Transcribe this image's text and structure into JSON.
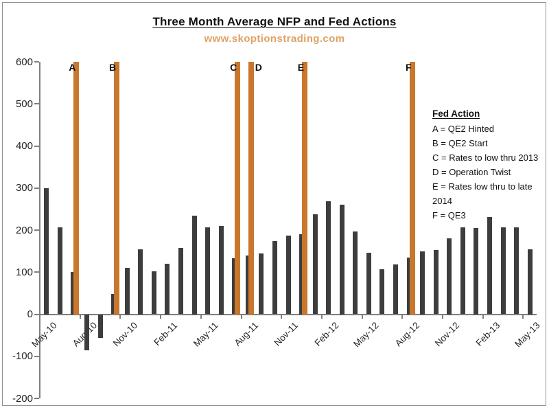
{
  "title": "Three Month Average NFP and Fed Actions",
  "subtitle": "www.skoptionstrading.com",
  "colors": {
    "bar": "#3d3d3d",
    "fed_line": "#c8772c",
    "subtitle_text": "#dfa263",
    "axis": "#7f7f7f",
    "text": "#262626"
  },
  "legend": {
    "title": "Fed Action"
  },
  "chart_data": {
    "type": "bar",
    "title": "Three Month Average NFP and Fed Actions",
    "subtitle": "www.skoptionstrading.com",
    "xlabel": "",
    "ylabel": "",
    "ylim": [
      -200,
      600
    ],
    "y_ticks": [
      600,
      500,
      400,
      300,
      200,
      100,
      0,
      -100,
      -200
    ],
    "grid": false,
    "categories": [
      "May-10",
      "Jun-10",
      "Jul-10",
      "Aug-10",
      "Sep-10",
      "Oct-10",
      "Nov-10",
      "Dec-10",
      "Jan-11",
      "Feb-11",
      "Mar-11",
      "Apr-11",
      "May-11",
      "Jun-11",
      "Jul-11",
      "Aug-11",
      "Sep-11",
      "Oct-11",
      "Nov-11",
      "Dec-11",
      "Jan-12",
      "Feb-12",
      "Mar-12",
      "Apr-12",
      "May-12",
      "Jun-12",
      "Jul-12",
      "Aug-12",
      "Sep-12",
      "Oct-12",
      "Nov-12",
      "Dec-12",
      "Jan-13",
      "Feb-13",
      "Mar-13",
      "Apr-13",
      "May-13"
    ],
    "values": [
      300,
      207,
      100,
      -85,
      -57,
      48,
      110,
      155,
      102,
      120,
      157,
      235,
      207,
      210,
      133,
      139,
      144,
      174,
      187,
      190,
      237,
      269,
      260,
      196,
      146,
      107,
      119,
      135,
      150,
      152,
      180,
      207,
      205,
      231,
      207,
      207,
      155
    ],
    "x_tick_labels": [
      "May-10",
      "Aug-10",
      "Nov-10",
      "Feb-11",
      "May-11",
      "Aug-11",
      "Nov-11",
      "Feb-12",
      "May-12",
      "Aug-12",
      "Nov-12",
      "Feb-13",
      "May-13"
    ],
    "fed_actions": [
      {
        "key": "A",
        "month": "Jul-10",
        "label": "QE2 Hinted",
        "label_side": "left"
      },
      {
        "key": "B",
        "month": "Oct-10",
        "label": "QE2 Start",
        "label_side": "left"
      },
      {
        "key": "C",
        "month": "Jul-11",
        "label": "Rates to low thru 2013",
        "label_side": "left"
      },
      {
        "key": "D",
        "month": "Aug-11",
        "label": "Operation Twist",
        "label_side": "right"
      },
      {
        "key": "E",
        "month": "Dec-11",
        "label": "Rates low thru to late 2014",
        "label_side": "left"
      },
      {
        "key": "F",
        "month": "Aug-12",
        "label": "QE3",
        "label_side": "left"
      }
    ],
    "fed_line_span": [
      0,
      600
    ]
  }
}
